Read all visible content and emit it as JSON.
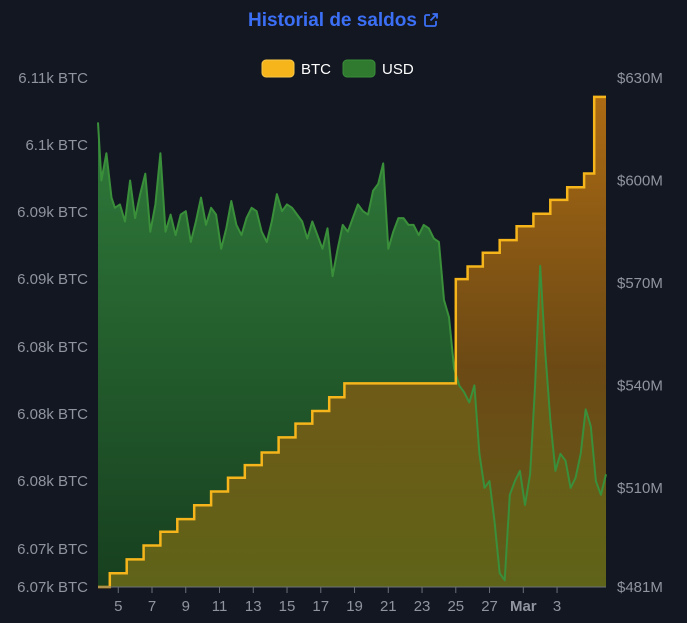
{
  "header": {
    "title": "Historial de saldos",
    "link_icon": "external-link-icon"
  },
  "colors": {
    "background": "#131722",
    "btc": "#f5b51b",
    "usd": "#3a8f3a",
    "title": "#3b6ff5",
    "tick_text": "#8f949e"
  },
  "chart_data": {
    "type": "area",
    "title": "Historial de saldos",
    "legend": {
      "placement": "top-center",
      "entries": [
        "BTC",
        "USD"
      ]
    },
    "grid": false,
    "x_ticks": [
      "5",
      "7",
      "9",
      "11",
      "13",
      "15",
      "17",
      "19",
      "21",
      "23",
      "25",
      "27",
      "Mar",
      "3"
    ],
    "y_left_ticks": [
      "6.11k BTC",
      "6.1k BTC",
      "6.09k BTC",
      "6.09k BTC",
      "6.08k BTC",
      "6.08k BTC",
      "6.08k BTC",
      "6.07k BTC",
      "6.07k BTC"
    ],
    "y_right_ticks": [
      "$630M",
      "$600M",
      "$570M",
      "$540M",
      "$510M",
      "$481M"
    ],
    "x_range": [
      3.8,
      33.9
    ],
    "y_left_range": [
      6070,
      6110.5
    ],
    "y_right_range": [
      481,
      630
    ],
    "series": [
      {
        "name": "BTC",
        "axis": "left",
        "step": true,
        "x": [
          3.8,
          4.5,
          5.5,
          6.5,
          7.5,
          8.5,
          9.5,
          10.5,
          11.5,
          12.5,
          13.5,
          14.5,
          15.5,
          16.5,
          17.5,
          18.4,
          25.0,
          25.7,
          26.6,
          27.6,
          28.6,
          29.6,
          30.6,
          31.6,
          32.6,
          33.2,
          33.9
        ],
        "values": [
          6070.0,
          6071.1,
          6072.2,
          6073.3,
          6074.4,
          6075.4,
          6076.5,
          6077.6,
          6078.7,
          6079.7,
          6080.7,
          6081.9,
          6083.0,
          6084.0,
          6085.1,
          6086.2,
          6094.5,
          6095.5,
          6096.6,
          6097.6,
          6098.7,
          6099.7,
          6100.8,
          6101.8,
          6102.9,
          6109.0,
          6109.0
        ],
        "color": "#f5b51b"
      },
      {
        "name": "USD",
        "axis": "right",
        "step": false,
        "x": [
          3.8,
          4.0,
          4.3,
          4.6,
          4.8,
          5.1,
          5.4,
          5.7,
          6.0,
          6.3,
          6.6,
          6.9,
          7.2,
          7.5,
          7.8,
          8.1,
          8.4,
          8.7,
          9.0,
          9.3,
          9.6,
          9.9,
          10.2,
          10.5,
          10.8,
          11.1,
          11.4,
          11.7,
          12.0,
          12.3,
          12.6,
          12.9,
          13.2,
          13.5,
          13.8,
          14.1,
          14.4,
          14.7,
          15.0,
          15.3,
          15.6,
          15.9,
          16.2,
          16.5,
          16.8,
          17.1,
          17.4,
          17.7,
          18.0,
          18.3,
          18.6,
          18.9,
          19.2,
          19.5,
          19.8,
          20.1,
          20.4,
          20.7,
          21.0,
          21.3,
          21.6,
          21.9,
          22.2,
          22.5,
          22.8,
          23.1,
          23.4,
          23.7,
          24.0,
          24.3,
          24.6,
          24.9,
          25.2,
          25.5,
          25.8,
          26.1,
          26.4,
          26.7,
          27.0,
          27.3,
          27.6,
          27.9,
          28.2,
          28.5,
          28.8,
          29.1,
          29.4,
          29.7,
          30.0,
          30.3,
          30.6,
          30.9,
          31.2,
          31.5,
          31.8,
          32.1,
          32.4,
          32.7,
          33.0,
          33.3,
          33.6,
          33.9
        ],
        "values": [
          617,
          600,
          608,
          595,
          592,
          593,
          588,
          600,
          589,
          596,
          602,
          585,
          593,
          608,
          585,
          590,
          584,
          590,
          591,
          582,
          588,
          595,
          587,
          592,
          590,
          580,
          586,
          594,
          587,
          584,
          589,
          592,
          591,
          585,
          582,
          588,
          596,
          591,
          593,
          592,
          590,
          588,
          583,
          588,
          584,
          580,
          586,
          572,
          580,
          587,
          585,
          589,
          593,
          591,
          590,
          597,
          599,
          605,
          580,
          585,
          589,
          589,
          587,
          587,
          584,
          587,
          586,
          583,
          582,
          565,
          560,
          545,
          540,
          538,
          535,
          540,
          520,
          510,
          512,
          500,
          485,
          483,
          508,
          512,
          515,
          505,
          514,
          540,
          575,
          550,
          530,
          515,
          520,
          518,
          510,
          513,
          520,
          533,
          528,
          512,
          508,
          514
        ],
        "color": "#3a8f3a"
      }
    ]
  }
}
